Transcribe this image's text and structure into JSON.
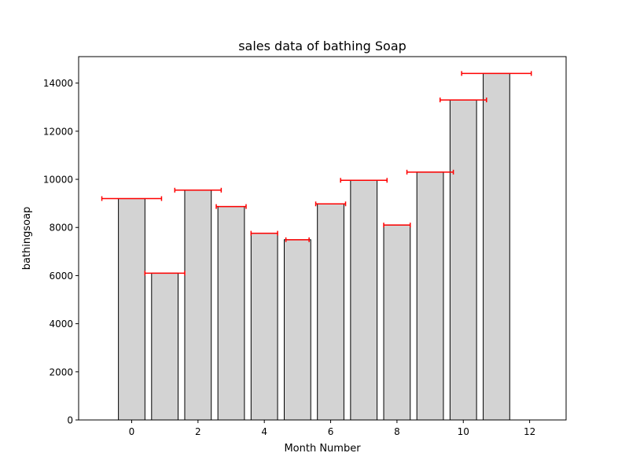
{
  "chart_data": {
    "type": "bar",
    "title": "sales data of bathing Soap",
    "xlabel": "Month Number",
    "ylabel": "bathingsoap",
    "x": [
      0,
      1,
      2,
      3,
      4,
      5,
      6,
      7,
      8,
      9,
      10,
      11
    ],
    "values": [
      9200,
      6100,
      9550,
      8870,
      7760,
      7490,
      8980,
      9960,
      8100,
      10300,
      13300,
      14400
    ],
    "xerr": [
      0.9,
      0.6,
      0.7,
      0.45,
      0.4,
      0.35,
      0.45,
      0.7,
      0.4,
      0.7,
      0.7,
      1.05
    ],
    "xlim": [
      -1.6,
      13.1
    ],
    "ylim": [
      0,
      15100
    ],
    "xticks": [
      0,
      2,
      4,
      6,
      8,
      10,
      12
    ],
    "yticks": [
      0,
      2000,
      4000,
      6000,
      8000,
      10000,
      12000,
      14000
    ],
    "grid": false,
    "colors": {
      "bar_fill": "#d3d3d3",
      "bar_edge": "#000000",
      "errorbar": "#ff0000"
    }
  }
}
